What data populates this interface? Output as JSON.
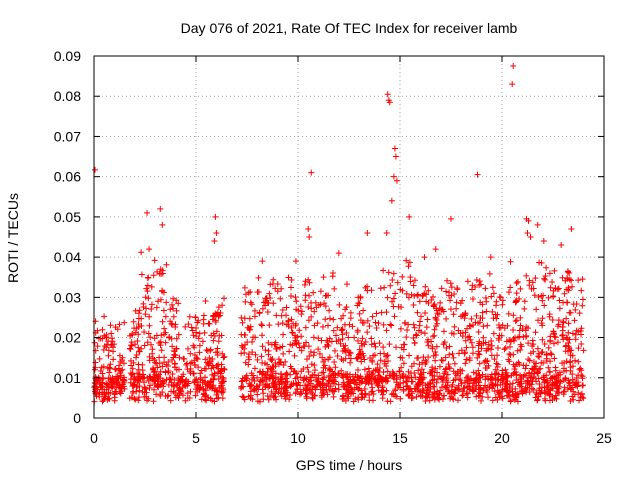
{
  "chart_data": {
    "type": "scatter",
    "title": "Day 076 of 2021, Rate Of TEC Index for receiver lamb",
    "xlabel": "GPS time / hours",
    "ylabel": "ROTI / TECUs",
    "xlim": [
      0,
      25
    ],
    "ylim": [
      0,
      0.09
    ],
    "xticks": [
      0,
      5,
      10,
      15,
      20,
      25
    ],
    "xtick_labels": [
      "0",
      "5",
      "10",
      "15",
      "20",
      "25"
    ],
    "yticks": [
      0,
      0.01,
      0.02,
      0.03,
      0.04,
      0.05,
      0.06,
      0.07,
      0.08,
      0.09
    ],
    "ytick_labels": [
      "0",
      "0.01",
      "0.02",
      "0.03",
      "0.04",
      "0.05",
      "0.06",
      "0.07",
      "0.08",
      "0.09"
    ],
    "grid": true,
    "marker": "+",
    "color": "#ff0000",
    "data_gaps_hours": [
      [
        1.5,
        1.75
      ],
      [
        6.4,
        7.2
      ]
    ],
    "series": [
      {
        "name": "ROTI",
        "points": [
          [
            0.05,
            0.0617
          ],
          [
            2.6,
            0.051
          ],
          [
            3.25,
            0.052
          ],
          [
            3.35,
            0.048
          ],
          [
            2.7,
            0.042
          ],
          [
            5.95,
            0.05
          ],
          [
            6.0,
            0.046
          ],
          [
            5.9,
            0.044
          ],
          [
            10.65,
            0.061
          ],
          [
            10.5,
            0.047
          ],
          [
            10.55,
            0.045
          ],
          [
            14.4,
            0.0805
          ],
          [
            14.45,
            0.079
          ],
          [
            14.5,
            0.0785
          ],
          [
            14.75,
            0.067
          ],
          [
            14.8,
            0.065
          ],
          [
            14.7,
            0.06
          ],
          [
            14.85,
            0.059
          ],
          [
            14.6,
            0.054
          ],
          [
            15.45,
            0.05
          ],
          [
            14.35,
            0.046
          ],
          [
            18.8,
            0.0605
          ],
          [
            20.55,
            0.0875
          ],
          [
            20.5,
            0.083
          ],
          [
            21.2,
            0.0495
          ],
          [
            21.3,
            0.049
          ],
          [
            21.25,
            0.046
          ],
          [
            21.4,
            0.045
          ],
          [
            21.75,
            0.048
          ],
          [
            23.4,
            0.047
          ],
          [
            17.5,
            0.0495
          ],
          [
            13.4,
            0.046
          ],
          [
            8.25,
            0.039
          ],
          [
            9.9,
            0.039
          ],
          [
            12.0,
            0.041
          ],
          [
            16.2,
            0.04
          ],
          [
            19.45,
            0.04
          ],
          [
            22.9,
            0.043
          ],
          [
            22.05,
            0.044
          ],
          [
            16.75,
            0.042
          ]
        ]
      }
    ]
  }
}
